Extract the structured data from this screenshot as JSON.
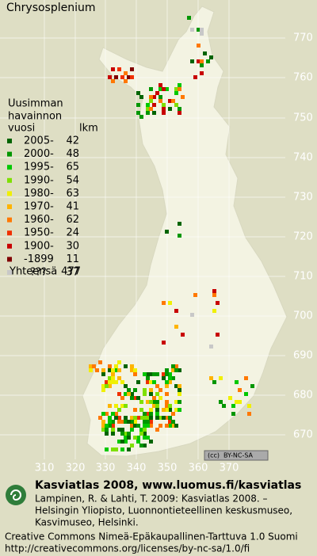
{
  "title": "Chrysosplenium",
  "legend": {
    "heading": [
      "Uusimman",
      "havainnon",
      "vuosi"
    ],
    "count_heading": "lkm",
    "rows": [
      {
        "label": "2005-",
        "count": 42,
        "color": "#006400"
      },
      {
        "label": "2000-",
        "count": 48,
        "color": "#009600"
      },
      {
        "label": "1995-",
        "count": 65,
        "color": "#00c800"
      },
      {
        "label": "1990-",
        "count": 54,
        "color": "#7ee000"
      },
      {
        "label": "1980-",
        "count": 63,
        "color": "#f0f000"
      },
      {
        "label": "1970-",
        "count": 41,
        "color": "#ffb400"
      },
      {
        "label": "1960-",
        "count": 62,
        "color": "#ff7800"
      },
      {
        "label": "1950-",
        "count": 24,
        "color": "#f03000"
      },
      {
        "label": "1900-",
        "count": 30,
        "color": "#c80000"
      },
      {
        "label": "-1899",
        "count": 11,
        "color": "#800000"
      },
      {
        "label": "???",
        "count": 37,
        "color": "#c8c8c8"
      }
    ],
    "total_label": "Yhteensä",
    "total": 477
  },
  "grid": {
    "x_labels": [
      "310",
      "320",
      "330",
      "340",
      "350",
      "360",
      "370"
    ],
    "y_labels": [
      "770",
      "760",
      "750",
      "740",
      "730",
      "720",
      "710",
      "700",
      "690",
      "680",
      "670"
    ]
  },
  "license_badge": "BY-NC-SA",
  "footer": {
    "heading": "Kasviatlas 2008, www.luomus.fi/kasviatlas",
    "citation": [
      "Lampinen, R. & Lahti, T. 2009: Kasviatlas 2008. –",
      "Helsingin Yliopisto, Luonnontieteellinen keskusmuseo,",
      "Kasvimuseo, Helsinki."
    ],
    "license": [
      "Creative Commons Nimeä-Epäkaupallinen-Tarttuva 1.0 Suomi",
      "http://creativecommons.org/licenses/by-nc-sa/1.0/fi"
    ]
  }
}
